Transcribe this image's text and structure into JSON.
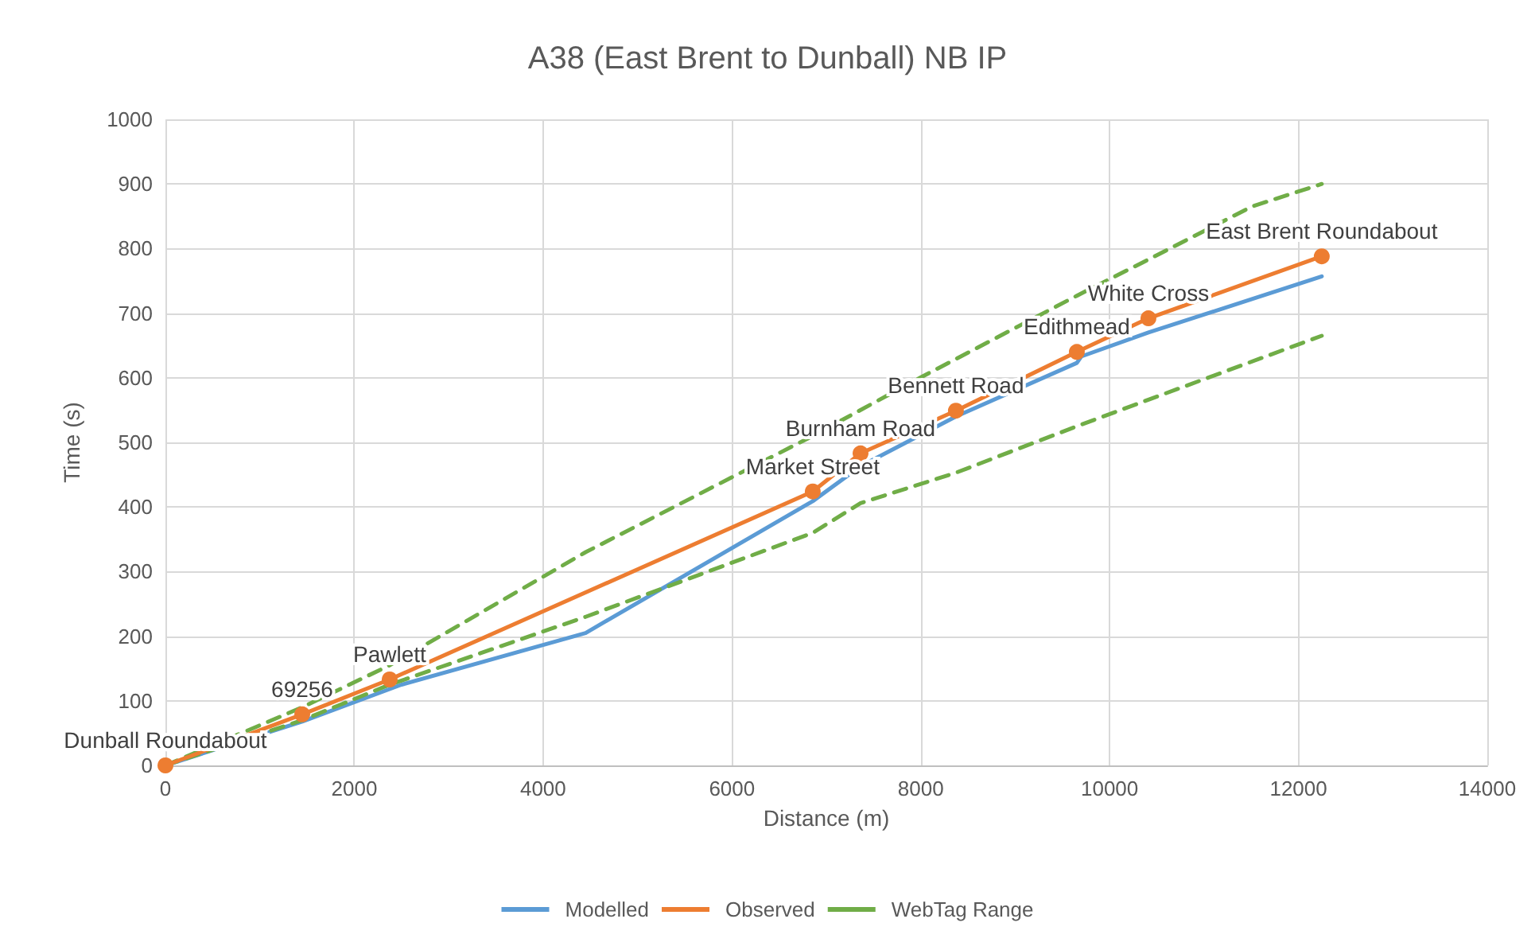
{
  "chart_data": {
    "type": "line",
    "title": "A38 (East Brent to Dunball) NB IP",
    "xlabel": "Distance (m)",
    "ylabel": "Time (s)",
    "xlim": [
      0,
      14000
    ],
    "xticks": [
      0,
      2000,
      4000,
      6000,
      8000,
      10000,
      12000,
      14000
    ],
    "ylim": [
      0,
      1000
    ],
    "yticks": [
      0,
      100,
      200,
      300,
      400,
      500,
      600,
      700,
      800,
      900,
      1000
    ],
    "grid": true,
    "legend": "bottom",
    "series": [
      {
        "name": "Modelled",
        "color": "#5b9bd5",
        "marker": "none",
        "line_style": "solid",
        "x": [
          0,
          1449,
          2500,
          4450,
          6856,
          7362,
          8372,
          9653,
          9700,
          10411,
          12247
        ],
        "values": [
          0,
          68,
          125,
          205,
          409,
          463,
          540,
          623,
          633,
          670,
          757
        ]
      },
      {
        "name": "Observed",
        "color": "#ed7d31",
        "marker": "circle",
        "line_style": "solid",
        "x": [
          0,
          1449,
          2375,
          6856,
          7362,
          8372,
          9653,
          10411,
          12247
        ],
        "values": [
          0,
          79,
          133,
          424,
          483,
          549,
          640,
          692,
          788
        ]
      },
      {
        "name": "WebTag Range",
        "color": "#70ad47",
        "marker": "none",
        "line_style": "dashed",
        "x": [
          0,
          1449,
          2375,
          4450,
          6856,
          8005,
          9653,
          10411,
          11506,
          12247
        ],
        "values": [
          0,
          90,
          155,
          330,
          510,
          601,
          727,
          783,
          865,
          900
        ]
      },
      {
        "color": "#70ad47",
        "marker": "none",
        "line_style": "dashed",
        "x": [
          0,
          1449,
          2375,
          4450,
          6856,
          7362,
          8372,
          9653,
          10411,
          12247
        ],
        "values": [
          0,
          70,
          125,
          230,
          360,
          406,
          453,
          525,
          566,
          665
        ]
      }
    ],
    "annotations": [
      {
        "text": "Dunball Roundabout",
        "x": 0,
        "y": 0
      },
      {
        "text": "69256",
        "x": 1449,
        "y": 79
      },
      {
        "text": "Pawlett",
        "x": 2375,
        "y": 133
      },
      {
        "text": "Market Street",
        "x": 6856,
        "y": 424
      },
      {
        "text": "Burnham Road",
        "x": 7362,
        "y": 483
      },
      {
        "text": "Bennett Road",
        "x": 8372,
        "y": 549
      },
      {
        "text": "Edithmead",
        "x": 9653,
        "y": 640
      },
      {
        "text": "White Cross",
        "x": 10411,
        "y": 692
      },
      {
        "text": "East Brent Roundabout",
        "x": 12247,
        "y": 788
      }
    ]
  }
}
